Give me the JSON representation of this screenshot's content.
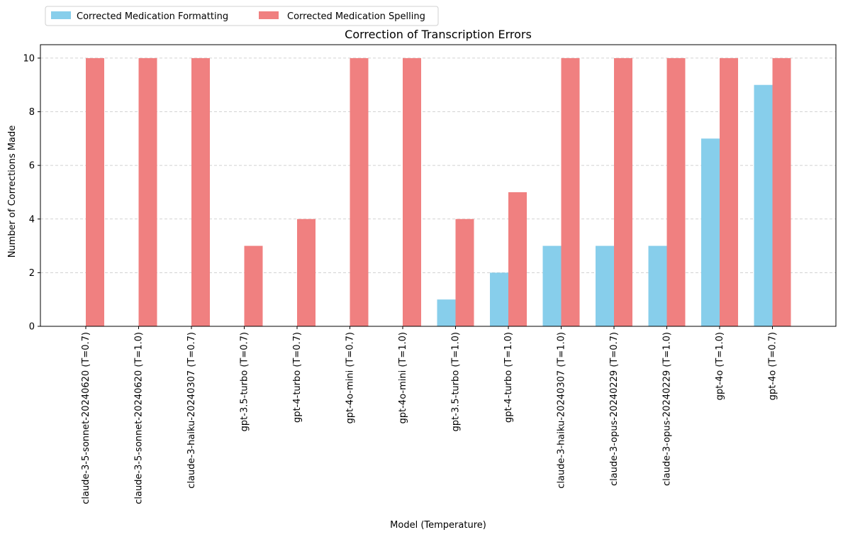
{
  "chart_data": {
    "type": "bar",
    "title": "Correction of Transcription Errors",
    "xlabel": "Model (Temperature)",
    "ylabel": "Number of Corrections Made",
    "ylim": [
      0,
      10.5
    ],
    "yticks": [
      0,
      2,
      4,
      6,
      8,
      10
    ],
    "grid": "y-dashed",
    "legend_position": "top-left",
    "categories": [
      "claude-3-5-sonnet-20240620 (T=0.7)",
      "claude-3-5-sonnet-20240620 (T=1.0)",
      "claude-3-haiku-20240307 (T=0.7)",
      "gpt-3.5-turbo (T=0.7)",
      "gpt-4-turbo (T=0.7)",
      "gpt-4o-mini (T=0.7)",
      "gpt-4o-mini (T=1.0)",
      "gpt-3.5-turbo (T=1.0)",
      "gpt-4-turbo (T=1.0)",
      "claude-3-haiku-20240307 (T=1.0)",
      "claude-3-opus-20240229 (T=0.7)",
      "claude-3-opus-20240229 (T=1.0)",
      "gpt-4o (T=1.0)",
      "gpt-4o (T=0.7)"
    ],
    "series": [
      {
        "name": "Corrected Medication Formatting",
        "color": "#87ceeb",
        "values": [
          0,
          0,
          0,
          0,
          0,
          0,
          0,
          1,
          2,
          3,
          3,
          3,
          7,
          9
        ]
      },
      {
        "name": "Corrected Medication Spelling",
        "color": "#f08080",
        "values": [
          10,
          10,
          10,
          3,
          4,
          10,
          10,
          4,
          5,
          10,
          10,
          10,
          10,
          10
        ]
      }
    ]
  }
}
